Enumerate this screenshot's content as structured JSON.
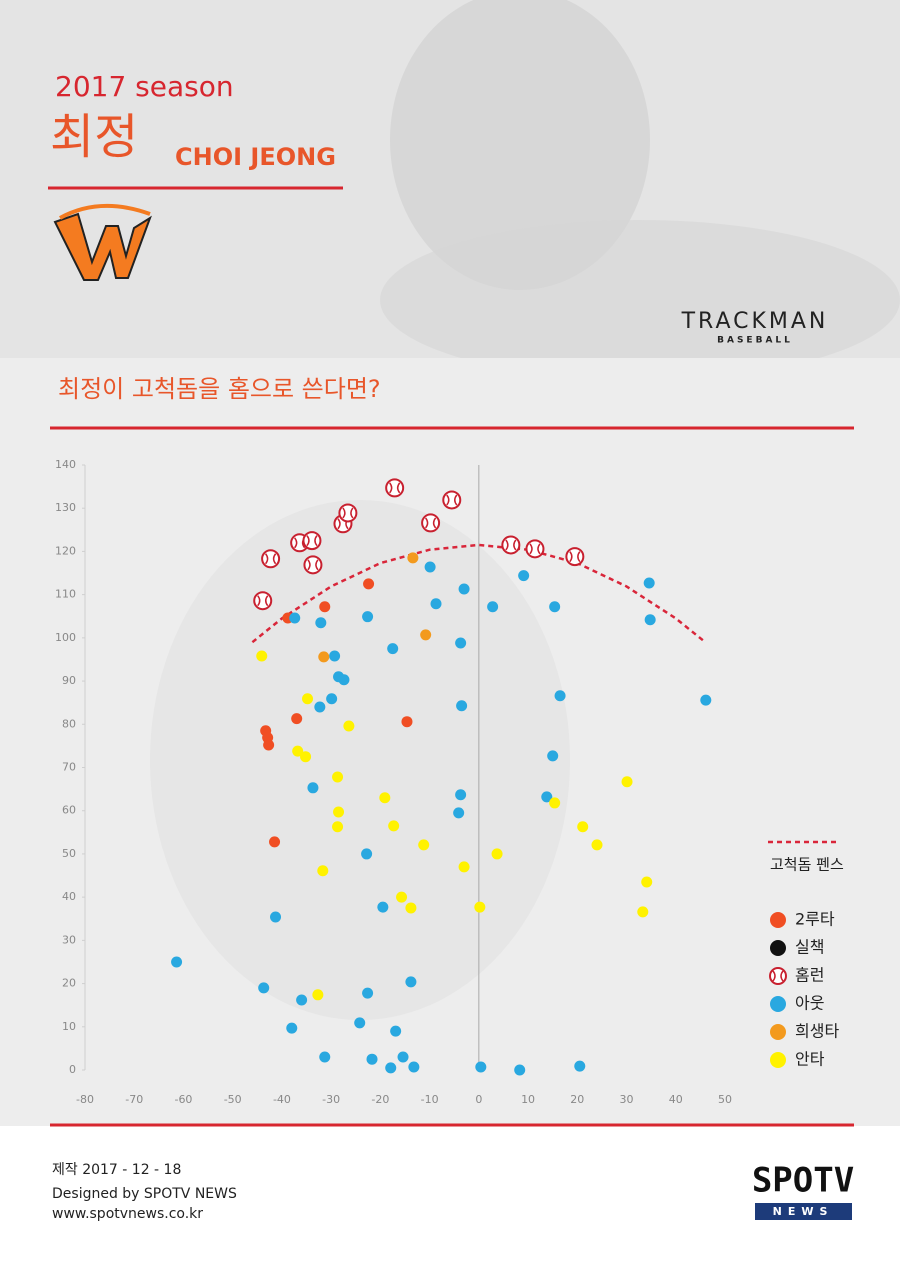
{
  "header": {
    "season": "2017 season",
    "name_ko": "최정",
    "name_en": "CHOI JEONG"
  },
  "brand": {
    "main": "TRACKMAN",
    "sub": "BASEBALL"
  },
  "chart_data": {
    "type": "scatter",
    "title": "최정이 고척돔을 홈으로 쓴다면?",
    "xlim": [
      -80,
      50
    ],
    "ylim": [
      0,
      140
    ],
    "xticks": [
      -80,
      -70,
      -60,
      -50,
      -40,
      -30,
      -20,
      -10,
      0,
      10,
      20,
      30,
      40,
      50
    ],
    "yticks": [
      0,
      10,
      20,
      30,
      40,
      50,
      60,
      70,
      80,
      90,
      100,
      110,
      120,
      130,
      140
    ],
    "zero_line": true,
    "series": [
      {
        "name": "고척돔 펜스",
        "type": "line",
        "dashed": true,
        "color": "#d9263a",
        "x": [
          -46,
          -40,
          -30,
          -20,
          -10,
          0,
          10,
          20,
          30,
          40,
          46
        ],
        "y": [
          99,
          104.5,
          111.9,
          117.3,
          120.4,
          121.5,
          120.4,
          117.3,
          111.9,
          104.5,
          99
        ]
      },
      {
        "name": "2루타",
        "color": "#f04e23",
        "x": [
          -38.8,
          -22.4,
          -31.3,
          -37.0,
          -14.6,
          -43.3,
          -42.9,
          -42.7,
          -41.5
        ],
        "y": [
          104.6,
          112.5,
          107.2,
          81.3,
          80.6,
          78.5,
          76.9,
          75.2,
          52.8
        ]
      },
      {
        "name": "실책",
        "color": "#111111",
        "x": [],
        "y": []
      },
      {
        "name": "홈런",
        "color": "#c8202f",
        "marker": "baseball",
        "x": [
          -43.9,
          -42.3,
          -36.4,
          -33.9,
          -33.7,
          -27.6,
          -26.6,
          -17.1,
          -9.8,
          -5.5,
          6.5,
          11.4,
          19.5
        ],
        "y": [
          108.6,
          118.3,
          122.0,
          122.5,
          116.9,
          126.4,
          128.9,
          134.7,
          126.6,
          131.9,
          121.5,
          120.6,
          118.8
        ]
      },
      {
        "name": "아웃",
        "color": "#29a8e0",
        "x": [
          -37.4,
          -32.1,
          -22.6,
          -29.3,
          -28.5,
          -27.4,
          -29.9,
          -32.3,
          -17.5,
          -9.9,
          -8.7,
          -3.0,
          -3.7,
          -3.5,
          2.8,
          9.1,
          15.4,
          34.6,
          34.8,
          46.1,
          16.5,
          15.0,
          13.8,
          -3.7,
          -4.1,
          -33.7,
          -22.8,
          -41.3,
          -19.5,
          -61.4,
          -43.7,
          -36.0,
          -22.6,
          -13.8,
          -38.0,
          -24.2,
          -16.9,
          -31.3,
          -21.7,
          -17.9,
          -15.4,
          -13.2,
          0.4,
          8.3,
          20.5
        ],
        "y": [
          104.6,
          103.5,
          104.9,
          95.8,
          91.0,
          90.3,
          85.9,
          84.0,
          97.5,
          116.4,
          107.9,
          111.3,
          98.8,
          84.3,
          107.2,
          114.4,
          107.2,
          112.7,
          104.2,
          85.6,
          86.6,
          72.7,
          63.2,
          63.7,
          59.5,
          65.3,
          50.0,
          35.4,
          37.7,
          25.0,
          19.0,
          16.2,
          17.8,
          20.4,
          9.7,
          10.9,
          9.0,
          3.0,
          2.5,
          0.5,
          3.0,
          0.7,
          0.7,
          0,
          0.9
        ]
      },
      {
        "name": "희생타",
        "color": "#f39a1e",
        "x": [
          -13.4,
          -10.8,
          -31.5
        ],
        "y": [
          118.5,
          100.7,
          95.6
        ]
      },
      {
        "name": "안타",
        "color": "#fff200",
        "x": [
          -44.1,
          -34.8,
          -36.8,
          -35.2,
          -26.4,
          -28.7,
          -28.5,
          -28.7,
          -19.1,
          -17.3,
          -11.2,
          -31.7,
          -15.7,
          -13.8,
          -3.0,
          3.7,
          0.2,
          -32.7,
          15.4,
          21.1,
          24.0,
          30.1,
          34.1,
          33.3
        ],
        "y": [
          95.8,
          85.9,
          73.8,
          72.5,
          79.6,
          67.8,
          59.7,
          56.3,
          63.0,
          56.5,
          52.1,
          46.1,
          40.0,
          37.5,
          47.0,
          50.0,
          37.7,
          17.4,
          61.8,
          56.3,
          52.1,
          66.7,
          43.5,
          36.6
        ]
      }
    ]
  },
  "footer": {
    "date": "제작 2017 - 12 - 18",
    "designer": "Designed by SPOTV NEWS",
    "url": "www.spotvnews.co.kr",
    "logo_main": "SPOTV",
    "logo_sub": "NEWS"
  }
}
